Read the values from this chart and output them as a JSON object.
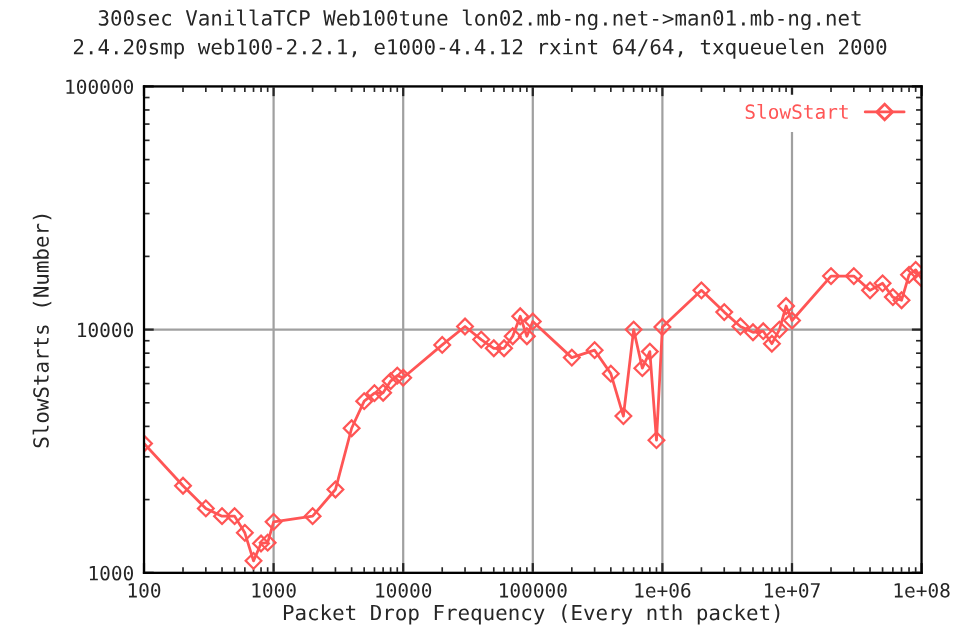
{
  "chart_data": {
    "type": "line",
    "title": "300sec VanillaTCP Web100tune lon02.mb-ng.net->man01.mb-ng.net",
    "subtitle": "2.4.20smp web100-2.2.1, e1000-4.4.12 rxint 64/64, txqueuelen 2000",
    "xlabel": "Packet Drop Frequency (Every nth packet)",
    "ylabel": "SlowStarts (Number)",
    "x": [
      100,
      200,
      300,
      400,
      500,
      600,
      700,
      800,
      900,
      1000,
      2000,
      3000,
      4000,
      5000,
      6000,
      7000,
      8000,
      9000,
      10000,
      20000,
      30000,
      40000,
      50000,
      60000,
      70000,
      80000,
      90000,
      100000,
      200000,
      300000,
      400000,
      500000,
      600000,
      700000,
      800000,
      900000,
      1000000,
      2000000,
      3000000,
      4000000,
      5000000,
      6000000,
      7000000,
      8000000,
      9000000,
      10000000,
      20000000,
      30000000,
      40000000,
      50000000,
      60000000,
      70000000,
      80000000,
      90000000,
      100000000
    ],
    "series": [
      {
        "name": "SlowStart",
        "color": "#ff5555",
        "values": [
          3400,
          2280,
          1840,
          1710,
          1710,
          1460,
          1120,
          1320,
          1330,
          1620,
          1710,
          2200,
          3930,
          5080,
          5480,
          5500,
          6140,
          6470,
          6340,
          8650,
          10300,
          9100,
          8380,
          8380,
          9390,
          11350,
          9390,
          10800,
          7670,
          8230,
          6590,
          4410,
          10000,
          6940,
          8120,
          3510,
          10250,
          14500,
          11800,
          10300,
          9750,
          9850,
          8750,
          10000,
          12500,
          10900,
          16600,
          16600,
          14500,
          15500,
          13600,
          13200,
          16800,
          17600,
          16200
        ]
      }
    ],
    "log": "xy",
    "xlim": [
      100,
      100000000
    ],
    "ylim": [
      1000,
      100000
    ],
    "xticks": [
      100,
      1000,
      10000,
      100000,
      {
        "value": 1000000,
        "label": "1e+06"
      },
      {
        "value": 10000000,
        "label": "1e+07"
      },
      {
        "value": 100000000,
        "label": "1e+08"
      }
    ],
    "yticks": [
      1000,
      10000,
      100000
    ],
    "grid": true,
    "legend": "top right",
    "marker": "diamond",
    "line_style": "solid"
  }
}
